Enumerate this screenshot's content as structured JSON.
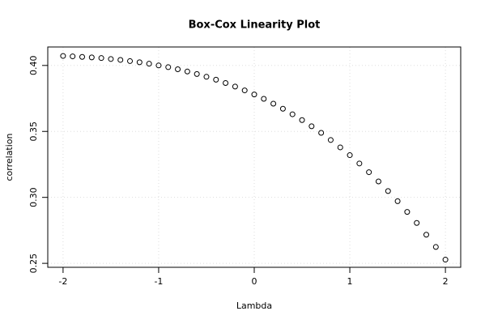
{
  "chart_data": {
    "type": "scatter",
    "title": "Box-Cox Linearity Plot",
    "x_label": "Lambda",
    "y_label": "correlation",
    "x": [
      -2.0,
      -1.9,
      -1.8,
      -1.7,
      -1.6,
      -1.5,
      -1.4,
      -1.3,
      -1.2,
      -1.1,
      -1.0,
      -0.9,
      -0.8,
      -0.7,
      -0.6,
      -0.5,
      -0.4,
      -0.3,
      -0.2,
      -0.1,
      0.0,
      0.1,
      0.2,
      0.3,
      0.4,
      0.5,
      0.6,
      0.7,
      0.8,
      0.9,
      1.0,
      1.1,
      1.2,
      1.3,
      1.4,
      1.5,
      1.6,
      1.7,
      1.8,
      1.9,
      2.0
    ],
    "values": [
      0.4072,
      0.4069,
      0.4065,
      0.4061,
      0.4056,
      0.4049,
      0.4042,
      0.4033,
      0.4024,
      0.4013,
      0.4,
      0.3987,
      0.3971,
      0.3954,
      0.3935,
      0.3914,
      0.3892,
      0.3867,
      0.384,
      0.3811,
      0.378,
      0.3747,
      0.371,
      0.3672,
      0.363,
      0.3586,
      0.3539,
      0.3489,
      0.3435,
      0.3379,
      0.332,
      0.3257,
      0.3191,
      0.3121,
      0.3048,
      0.2971,
      0.289,
      0.2806,
      0.2717,
      0.2624,
      0.2528
    ],
    "color": "#000000",
    "xlim": [
      -2.16,
      2.16
    ],
    "ylim": [
      0.247,
      0.414
    ],
    "xticks": [
      -2,
      -1,
      0,
      1,
      2
    ],
    "yticks": [
      0.25,
      {
        "value": 0.3,
        "label": "0.30"
      },
      0.35,
      {
        "value": 0.4,
        "label": "0.40"
      }
    ],
    "grid": true
  }
}
